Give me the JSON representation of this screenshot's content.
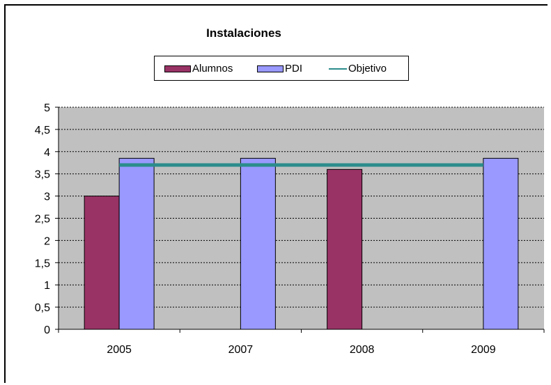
{
  "chart_data": {
    "type": "bar",
    "title": "Instalaciones",
    "categories": [
      "2005",
      "2007",
      "2008",
      "2009"
    ],
    "series": [
      {
        "name": "Alumnos",
        "type": "bar",
        "color": "#993366",
        "values": [
          3.0,
          null,
          3.6,
          null
        ]
      },
      {
        "name": "PDI",
        "type": "bar",
        "color": "#9999ff",
        "values": [
          3.85,
          3.85,
          null,
          3.85
        ]
      },
      {
        "name": "Objetivo",
        "type": "line",
        "color": "#2b8c8c",
        "values": [
          3.7,
          3.7,
          3.7,
          3.7
        ]
      }
    ],
    "ylim": [
      0,
      5
    ],
    "yticks": [
      "0",
      "0,5",
      "1",
      "1,5",
      "2",
      "2,5",
      "3",
      "3,5",
      "4",
      "4,5",
      "5"
    ],
    "grid": true,
    "legend_position": "top",
    "plot_background": "#c0c0c0"
  }
}
